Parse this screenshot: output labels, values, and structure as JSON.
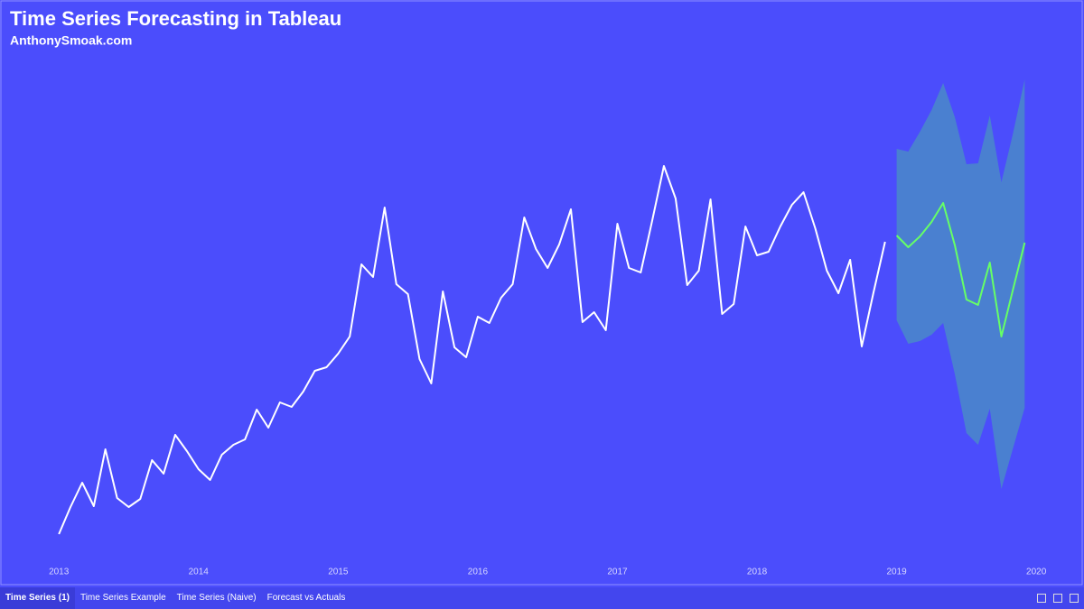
{
  "chart_data": {
    "type": "line",
    "title": "Time Series Forecasting in Tableau",
    "subtitle": "AnthonySmoak.com",
    "xlim": [
      2012.63,
      2020.29
    ],
    "xticks": [
      2013,
      2014,
      2015,
      2016,
      2017,
      2018,
      2019,
      2020
    ],
    "ylim": [
      0,
      112
    ],
    "series": [
      {
        "color": "#ffffff",
        "x": [
          2013.0,
          2013.083,
          2013.167,
          2013.25,
          2013.333,
          2013.417,
          2013.5,
          2013.583,
          2013.667,
          2013.75,
          2013.833,
          2013.917,
          2014.0,
          2014.083,
          2014.167,
          2014.25,
          2014.333,
          2014.417,
          2014.5,
          2014.583,
          2014.667,
          2014.75,
          2014.833,
          2014.917,
          2015.0,
          2015.083,
          2015.167,
          2015.25,
          2015.333,
          2015.417,
          2015.5,
          2015.583,
          2015.667,
          2015.75,
          2015.833,
          2015.917,
          2016.0,
          2016.083,
          2016.167,
          2016.25,
          2016.333,
          2016.417,
          2016.5,
          2016.583,
          2016.667,
          2016.75,
          2016.833,
          2016.917,
          2017.0,
          2017.083,
          2017.167,
          2017.25,
          2017.333,
          2017.417,
          2017.5,
          2017.583,
          2017.667,
          2017.75,
          2017.833,
          2017.917,
          2018.0,
          2018.083,
          2018.167,
          2018.25,
          2018.333,
          2018.417,
          2018.5,
          2018.583,
          2018.667,
          2018.75,
          2018.833,
          2018.917
        ],
        "values": [
          5.6,
          11.6,
          17,
          11.8,
          24.4,
          13.6,
          11.6,
          13.4,
          22,
          19,
          27.6,
          24,
          20,
          17.6,
          23.2,
          25.4,
          26.6,
          33.2,
          29.2,
          34.8,
          33.8,
          37.2,
          41.8,
          42.6,
          45.6,
          49.4,
          65.4,
          62.6,
          78,
          61,
          58.8,
          44.4,
          39,
          59.4,
          47,
          44.8,
          53.8,
          52.4,
          58,
          61,
          75.8,
          68.8,
          64.6,
          69.8,
          77.6,
          52.6,
          54.8,
          50.8,
          74.4,
          64.6,
          63.6,
          75.2,
          87.2,
          80,
          60.8,
          64,
          79.8,
          54.4,
          56.6,
          73.8,
          67.4,
          68.2,
          73.8,
          78.6,
          81.4,
          73.4,
          64,
          59,
          66.4,
          47.2,
          59,
          70.4
        ]
      },
      {
        "color": "#66ff66",
        "band_color": "#4a80d0",
        "x": [
          2019.0,
          2019.083,
          2019.167,
          2019.25,
          2019.333,
          2019.417,
          2019.5,
          2019.583,
          2019.667,
          2019.75,
          2019.833,
          2019.917
        ],
        "values": [
          71.8,
          69.2,
          71.6,
          74.8,
          79,
          69.6,
          57.6,
          56.4,
          65.8,
          49.4,
          59.8,
          70.2
        ],
        "upper": [
          91,
          90.4,
          94.8,
          99.6,
          105.6,
          98,
          87.6,
          87.8,
          98.4,
          83.6,
          94.4,
          106.4
        ],
        "lower": [
          53,
          47.8,
          48.4,
          49.8,
          52.4,
          41,
          28,
          25.4,
          33.4,
          15.6,
          24.6,
          33.6
        ]
      }
    ]
  },
  "tabs": [
    "Time Series (1)",
    "Time Series Example",
    "Time Series (Naive)",
    "Forecast vs Actuals"
  ]
}
